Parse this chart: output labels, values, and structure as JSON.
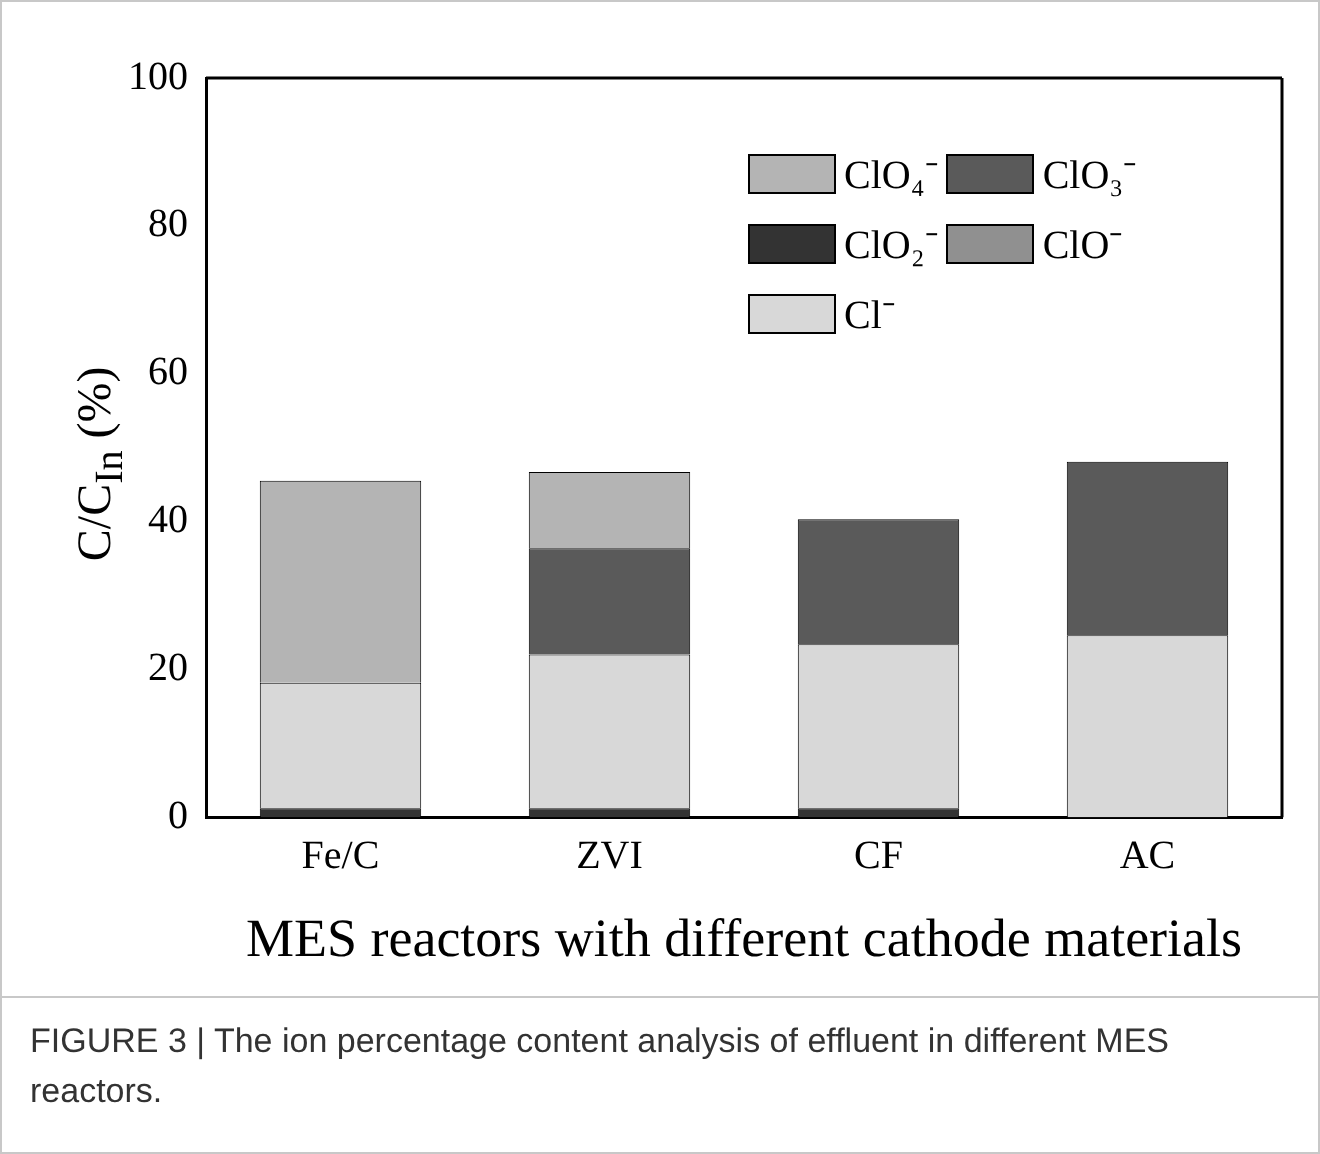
{
  "chart_data": {
    "type": "bar",
    "stacked": true,
    "xlabel": "MES reactors with different cathode materials",
    "ylabel": "C/C$_{In}$ (%)",
    "categories": [
      "Fe/C",
      "ZVI",
      "CF",
      "AC"
    ],
    "series": [
      {
        "name": "ClO₂⁻",
        "color": "#333333",
        "values": [
          1.2,
          1.2,
          1.2,
          null
        ]
      },
      {
        "name": "Cl⁻",
        "color": "#d8d8d8",
        "values": [
          17,
          20.8,
          22.2,
          24.6
        ]
      },
      {
        "name": "ClO⁻",
        "color": "#909090",
        "values": [
          null,
          null,
          null,
          null
        ]
      },
      {
        "name": "ClO₃⁻",
        "color": "#5a5a5a",
        "values": [
          null,
          14.4,
          16.9,
          23.5
        ]
      },
      {
        "name": "ClO₄⁻",
        "color": "#b4b4b4",
        "values": [
          27.3,
          10.3,
          null,
          null
        ]
      }
    ],
    "ylim": [
      0,
      100
    ],
    "yticks": [
      0,
      20,
      40,
      60,
      80,
      100
    ],
    "grid": false,
    "legend": "top right",
    "annotations": [
      "FIGURE 3 | The ion percentage content analysis of effluent in different MES reactors."
    ]
  }
}
